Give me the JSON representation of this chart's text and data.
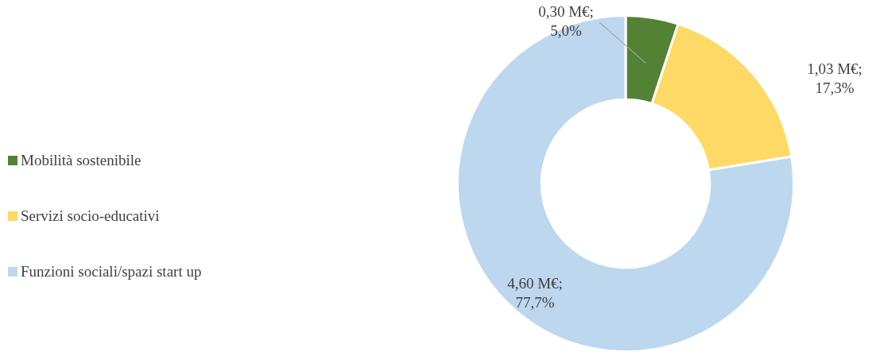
{
  "chart_data": {
    "type": "donut",
    "categories": [
      "Mobilità sostenibile",
      "Servizi socio-educativi",
      "Funzioni sociali/spazi start up"
    ],
    "values": [
      0.3,
      1.03,
      4.6
    ],
    "colors": [
      "#548235",
      "#ffd966",
      "#bdd7ee"
    ],
    "value_labels": [
      "0,30 M€; 5,0%",
      "1,03 M€; 17,3%",
      "4,60 M€; 77,7%"
    ],
    "legend": "left"
  }
}
